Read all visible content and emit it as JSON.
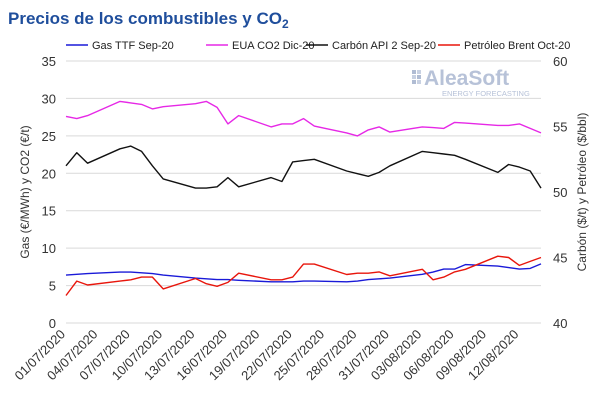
{
  "chart_data": {
    "type": "line",
    "title": "Precios de los combustibles y CO",
    "title_subscript": "2",
    "ylabel_left": "Gas (€/MWh) y CO2 (€/t)",
    "ylabel_right": "Carbón ($/t) y Petróleo ($/bbl)",
    "ylim_left": [
      0,
      35
    ],
    "ylim_right": [
      40,
      60
    ],
    "yticks_left": [
      "0",
      "5",
      "10",
      "15",
      "20",
      "25",
      "30",
      "35"
    ],
    "yticks_right": [
      "40",
      "45",
      "50",
      "55",
      "60"
    ],
    "grid": "horizontal",
    "legend_position": "top",
    "x_tick_labels": [
      "01/07/2020",
      "04/07/2020",
      "07/07/2020",
      "10/07/2020",
      "13/07/2020",
      "16/07/2020",
      "19/07/2020",
      "22/07/2020",
      "25/07/2020",
      "28/07/2020",
      "31/07/2020",
      "03/08/2020",
      "06/08/2020",
      "09/08/2020",
      "12/08/2020"
    ],
    "x": [
      "01/07/2020",
      "02/07/2020",
      "03/07/2020",
      "06/07/2020",
      "07/07/2020",
      "08/07/2020",
      "09/07/2020",
      "10/07/2020",
      "13/07/2020",
      "14/07/2020",
      "15/07/2020",
      "16/07/2020",
      "17/07/2020",
      "20/07/2020",
      "21/07/2020",
      "22/07/2020",
      "23/07/2020",
      "24/07/2020",
      "27/07/2020",
      "28/07/2020",
      "29/07/2020",
      "30/07/2020",
      "31/07/2020",
      "03/08/2020",
      "04/08/2020",
      "05/08/2020",
      "06/08/2020",
      "07/08/2020",
      "10/08/2020",
      "11/08/2020",
      "12/08/2020",
      "13/08/2020",
      "14/08/2020"
    ],
    "series": [
      {
        "name": "Gas TTF Sep-20",
        "axis": "left",
        "color": "#1a1ad8",
        "values": [
          6.4,
          6.5,
          6.6,
          6.8,
          6.8,
          6.7,
          6.6,
          6.4,
          6.0,
          5.9,
          5.8,
          5.8,
          5.7,
          5.5,
          5.5,
          5.5,
          5.6,
          5.6,
          5.5,
          5.6,
          5.8,
          5.9,
          6.0,
          6.5,
          6.8,
          7.2,
          7.2,
          7.8,
          7.6,
          7.4,
          7.2,
          7.3,
          7.9
        ]
      },
      {
        "name": "EUA CO2 Dic-20",
        "axis": "left",
        "color": "#e628e6",
        "values": [
          27.6,
          27.3,
          27.7,
          29.6,
          29.4,
          29.2,
          28.6,
          28.9,
          29.3,
          29.6,
          28.8,
          26.6,
          27.7,
          26.2,
          26.6,
          26.6,
          27.3,
          26.3,
          25.4,
          25.0,
          25.8,
          26.2,
          25.5,
          26.2,
          26.1,
          26.0,
          26.8,
          26.7,
          26.4,
          26.4,
          26.6,
          26.0,
          25.4
        ]
      },
      {
        "name": "Carbón API 2 Sep-20",
        "axis": "right",
        "color": "#111111",
        "values": [
          52.0,
          53.0,
          52.2,
          53.3,
          53.5,
          53.1,
          52.0,
          51.0,
          50.3,
          50.3,
          50.4,
          51.1,
          50.4,
          51.1,
          50.8,
          52.3,
          52.4,
          52.5,
          51.6,
          51.4,
          51.2,
          51.5,
          52.0,
          53.1,
          53.0,
          52.9,
          52.8,
          52.5,
          51.5,
          52.1,
          51.9,
          51.6,
          50.3
        ]
      },
      {
        "name": "Petróleo Brent Oct-20",
        "axis": "right",
        "color": "#e8160c",
        "values": [
          42.1,
          43.2,
          42.9,
          43.2,
          43.3,
          43.5,
          43.5,
          42.6,
          43.4,
          43.0,
          42.8,
          43.1,
          43.8,
          43.3,
          43.3,
          43.5,
          44.5,
          44.5,
          43.7,
          43.8,
          43.8,
          43.9,
          43.6,
          44.1,
          43.3,
          43.5,
          43.9,
          44.1,
          45.1,
          45.0,
          44.4,
          44.7,
          45.0
        ]
      }
    ]
  },
  "watermark": {
    "brand": "AleaSoft",
    "tagline": "ENERGY FORECASTING"
  }
}
